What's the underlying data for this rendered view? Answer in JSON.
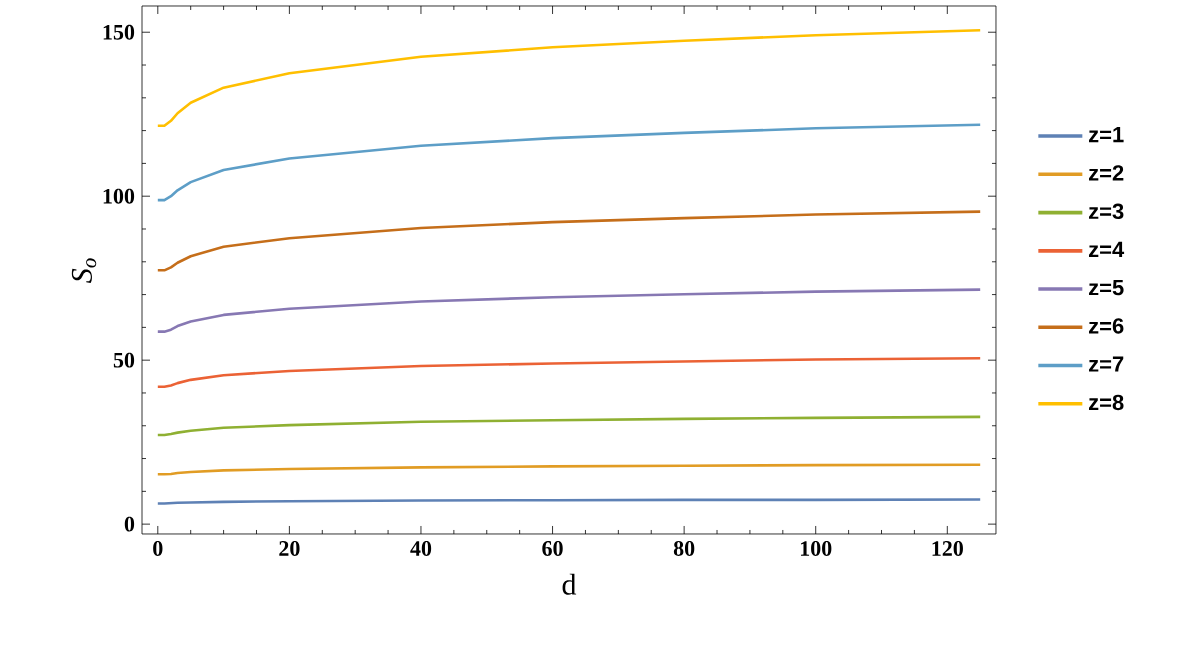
{
  "chart_data": {
    "type": "line",
    "xlabel": "d",
    "ylabel": "S$_{o}$",
    "x": [
      0,
      1,
      2,
      3,
      5,
      10,
      20,
      40,
      60,
      80,
      100,
      125
    ],
    "xlim": [
      -2.4,
      127.4
    ],
    "ylim": [
      -3,
      158
    ],
    "xticks": [
      0,
      20,
      40,
      60,
      80,
      100,
      120
    ],
    "yticks": [
      0,
      50,
      100,
      150
    ],
    "grid": false,
    "legend": "right",
    "marker": "none",
    "line_style": "solid",
    "series": [
      {
        "name": "z=1",
        "color": "#5e81b5",
        "values": [
          6.3,
          6.3,
          6.4,
          6.5,
          6.6,
          6.8,
          7.0,
          7.2,
          7.3,
          7.4,
          7.4,
          7.5
        ]
      },
      {
        "name": "z=2",
        "color": "#e19c24",
        "values": [
          15.2,
          15.2,
          15.3,
          15.6,
          15.9,
          16.4,
          16.8,
          17.3,
          17.6,
          17.8,
          18.0,
          18.1
        ]
      },
      {
        "name": "z=3",
        "color": "#8fb032",
        "values": [
          27.2,
          27.2,
          27.5,
          27.9,
          28.5,
          29.4,
          30.2,
          31.2,
          31.7,
          32.1,
          32.4,
          32.7
        ]
      },
      {
        "name": "z=4",
        "color": "#eb6235",
        "values": [
          41.9,
          41.9,
          42.3,
          43.0,
          44.0,
          45.4,
          46.7,
          48.2,
          49.0,
          49.6,
          50.2,
          50.6
        ]
      },
      {
        "name": "z=5",
        "color": "#8778b3",
        "values": [
          58.7,
          58.7,
          59.3,
          60.4,
          61.8,
          63.8,
          65.7,
          67.9,
          69.2,
          70.1,
          70.9,
          71.5
        ]
      },
      {
        "name": "z=6",
        "color": "#c56e1a",
        "values": [
          77.4,
          77.4,
          78.3,
          79.7,
          81.7,
          84.6,
          87.2,
          90.3,
          92.1,
          93.3,
          94.4,
          95.3
        ]
      },
      {
        "name": "z=7",
        "color": "#5d9ec7",
        "values": [
          98.8,
          98.8,
          100.0,
          101.8,
          104.3,
          108.0,
          111.5,
          115.4,
          117.7,
          119.3,
          120.7,
          121.8
        ]
      },
      {
        "name": "z=8",
        "color": "#ffbf00",
        "values": [
          121.5,
          121.5,
          123.0,
          125.3,
          128.5,
          133.1,
          137.5,
          142.5,
          145.4,
          147.4,
          149.1,
          150.6
        ]
      }
    ]
  }
}
